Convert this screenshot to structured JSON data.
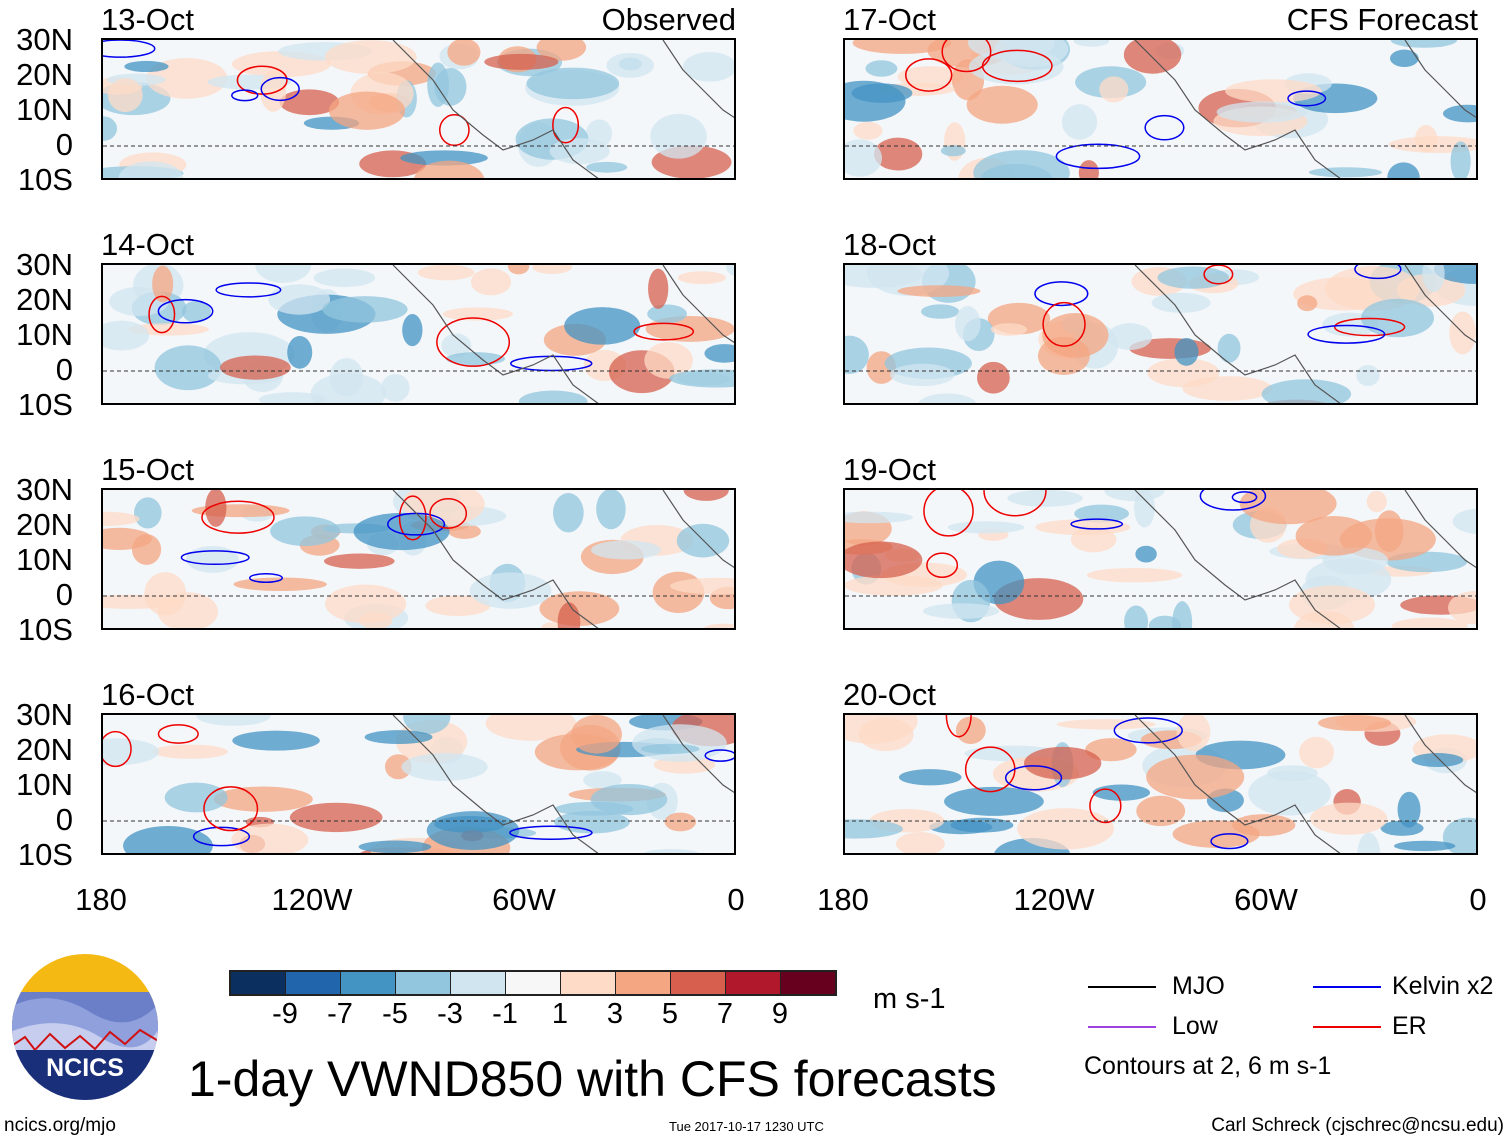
{
  "panels": [
    {
      "date": "13-Oct",
      "label": "Observed"
    },
    {
      "date": "14-Oct"
    },
    {
      "date": "15-Oct"
    },
    {
      "date": "16-Oct"
    },
    {
      "date": "17-Oct",
      "label": "CFS Forecast"
    },
    {
      "date": "18-Oct"
    },
    {
      "date": "19-Oct"
    },
    {
      "date": "20-Oct"
    }
  ],
  "lat_labels": [
    "30N",
    "20N",
    "10N",
    "0",
    "10S"
  ],
  "lon_labels": [
    "180",
    "120W",
    "60W",
    "0"
  ],
  "colorbar": {
    "colors": [
      "#0b3060",
      "#2166ac",
      "#4393c3",
      "#92c5de",
      "#d1e5f0",
      "#f7f7f7",
      "#fddbc7",
      "#f4a582",
      "#d6604d",
      "#b2182b",
      "#67001f"
    ],
    "ticks": [
      "-9",
      "-7",
      "-5",
      "-3",
      "-1",
      "1",
      "3",
      "5",
      "7",
      "9"
    ],
    "units": "m s-1"
  },
  "legend": {
    "items": [
      {
        "label": "MJO",
        "color": "#000000"
      },
      {
        "label": "Kelvin x2",
        "color": "#0000ee"
      },
      {
        "label": "Low",
        "color": "#a040e0"
      },
      {
        "label": "ER",
        "color": "#ee0000"
      }
    ],
    "note": "Contours at 2, 6 m s-1"
  },
  "logo": {
    "text": "NCICS"
  },
  "title": "1-day VWND850 with CFS forecasts",
  "footer": {
    "left": "ncics.org/mjo",
    "center": "Tue 2017-10-17 1230 UTC",
    "right": "Carl Schreck (cjschrec@ncsu.edu)"
  }
}
